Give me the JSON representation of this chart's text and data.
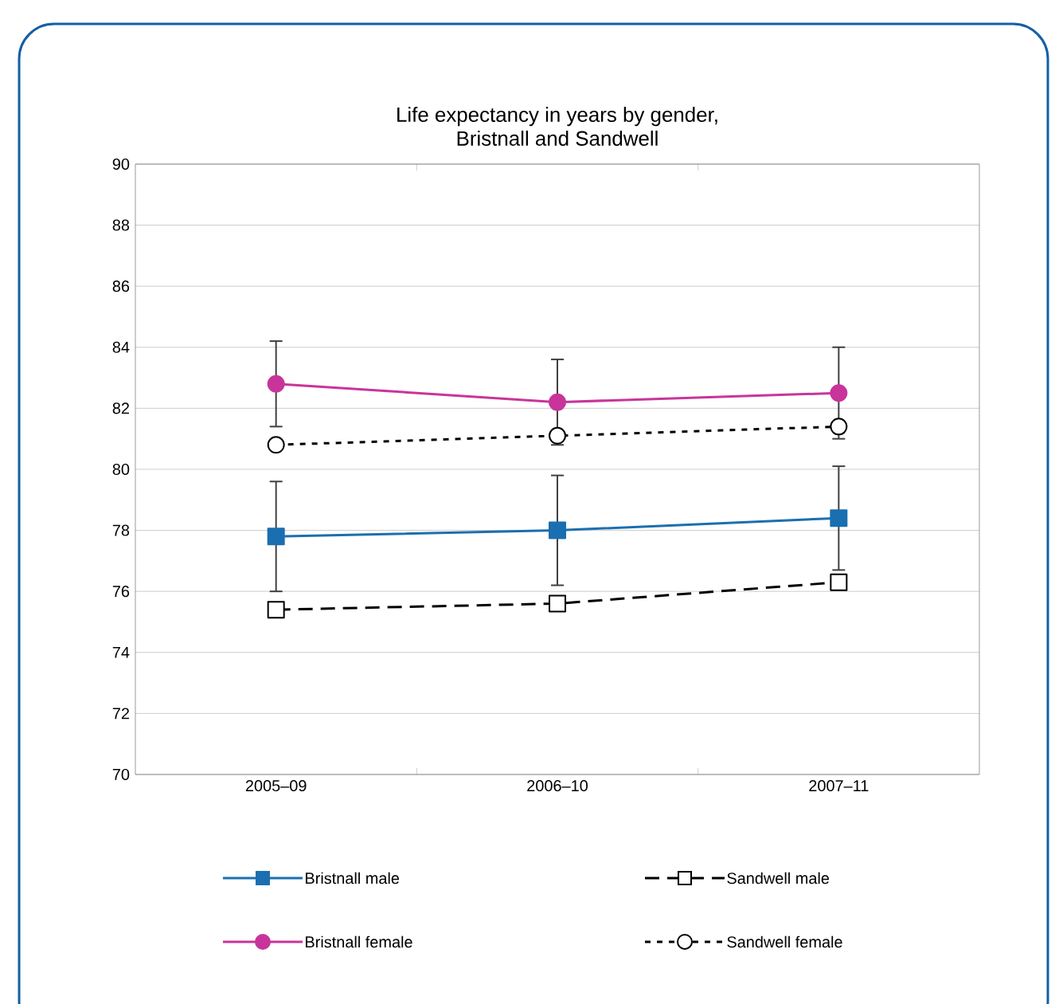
{
  "chart_data": {
    "type": "line",
    "title": "Life expectancy in years by gender,\nBristnall and Sandwell",
    "categories": [
      "2005–09",
      "2006–10",
      "2007–11"
    ],
    "series": [
      {
        "name": "Bristnall male",
        "color": "#1a6fb0",
        "marker": "square",
        "line_style": "solid",
        "values": [
          77.8,
          78.0,
          78.4
        ],
        "errors": [
          1.8,
          1.8,
          1.7
        ]
      },
      {
        "name": "Sandwell male",
        "color": "#000000",
        "marker": "square",
        "line_style": "dashed",
        "values": [
          75.4,
          75.6,
          76.3
        ]
      },
      {
        "name": "Bristnall female",
        "color": "#c8359a",
        "marker": "circle",
        "line_style": "solid",
        "values": [
          82.8,
          82.2,
          82.5
        ],
        "errors": [
          1.4,
          1.4,
          1.5
        ]
      },
      {
        "name": "Sandwell female",
        "color": "#000000",
        "marker": "circle",
        "line_style": "dotted",
        "values": [
          80.8,
          81.1,
          81.4
        ]
      }
    ],
    "ylim": [
      70,
      90
    ],
    "yticks": [
      70,
      72,
      74,
      76,
      78,
      80,
      82,
      84,
      86,
      88,
      90
    ],
    "grid": "y",
    "legend": "bottom"
  }
}
